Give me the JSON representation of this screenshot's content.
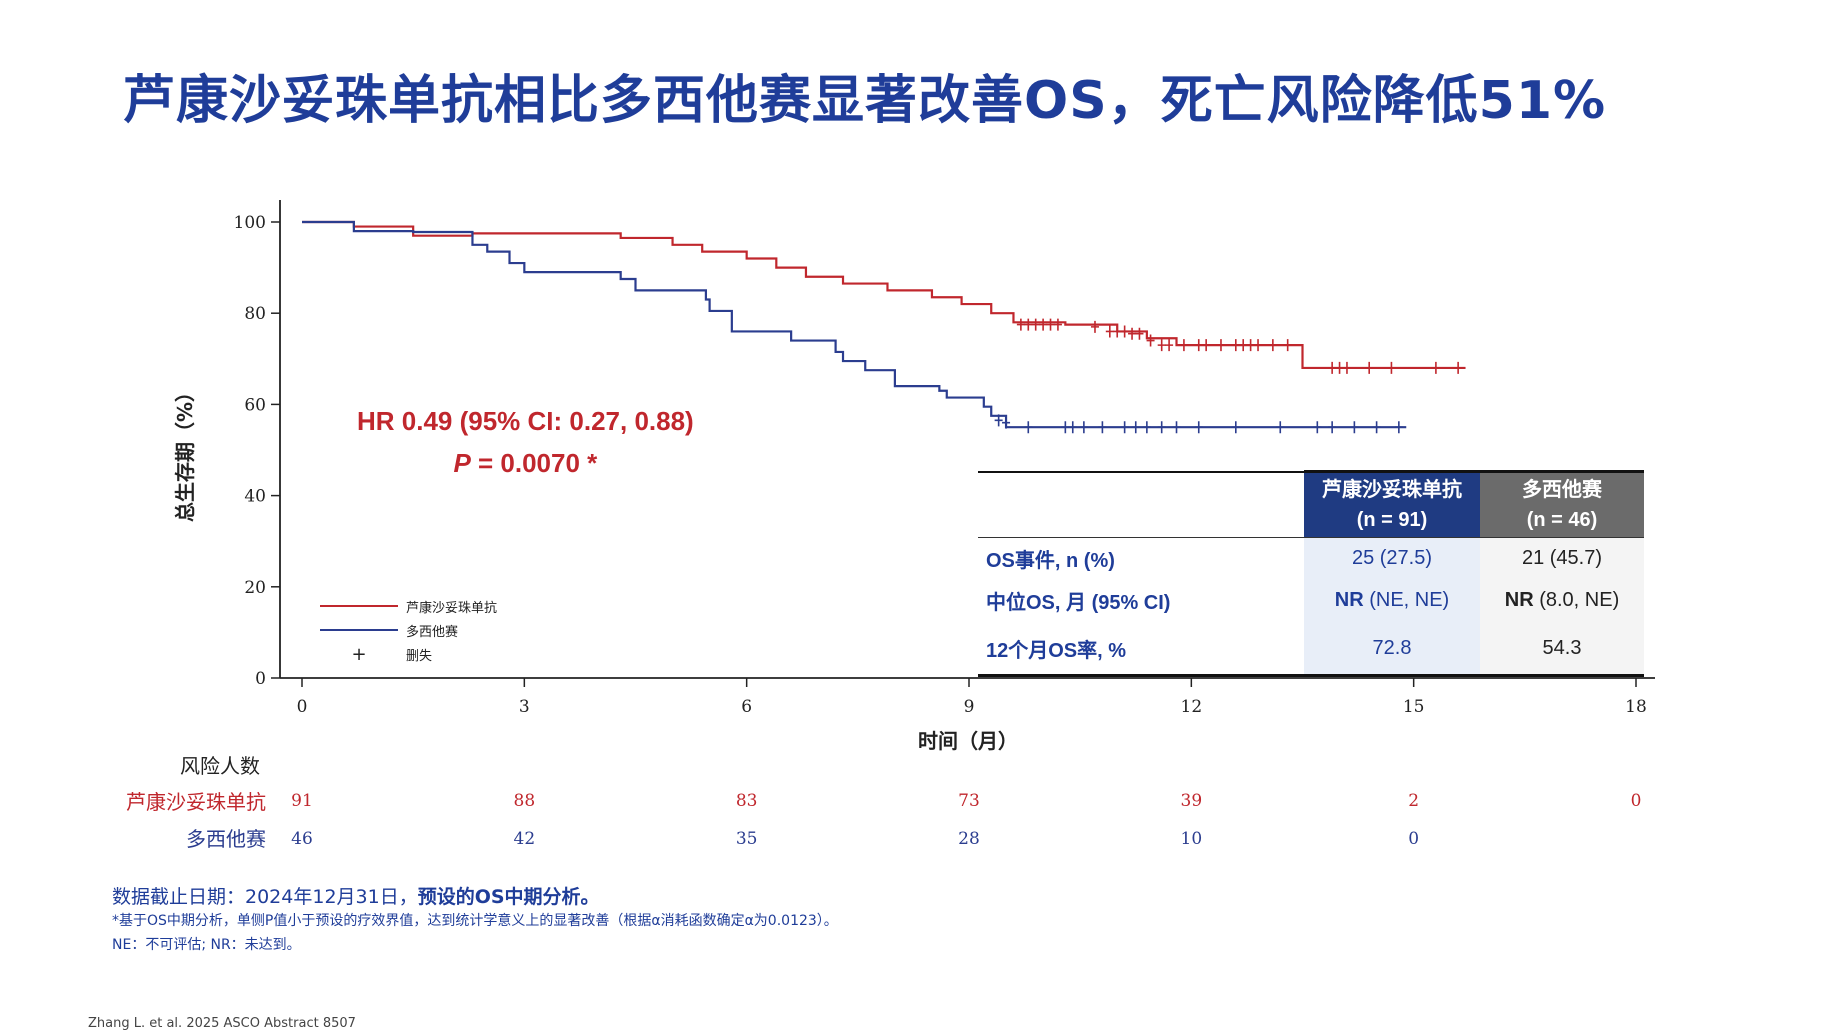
{
  "title": "芦康沙妥珠单抗相比多西他赛显著改善OS，死亡风险降低51%",
  "annotation": {
    "hr_line": "HR 0.49 (95% CI: 0.27, 0.88)",
    "p_italic": "P",
    "p_rest": " = 0.0070 *"
  },
  "legend": {
    "series1": "芦康沙妥珠单抗",
    "series2": "多西他赛",
    "censor_symbol": "+",
    "censor": "删失"
  },
  "table": {
    "header1_line1": "芦康沙妥珠单抗",
    "header1_line2": "(n = 91)",
    "header2_line1": "多西他赛",
    "header2_line2": "(n = 46)",
    "rows": [
      {
        "label": "OS事件, n (%)",
        "v1_bold": "",
        "v1": "25 (27.5)",
        "v2_bold": "",
        "v2": "21 (45.7)"
      },
      {
        "label": "中位OS, 月 (95% CI)",
        "v1_bold": "NR",
        "v1": " (NE, NE)",
        "v2_bold": "NR",
        "v2": " (8.0, NE)"
      },
      {
        "label": "12个月OS率, %",
        "v1_bold": "",
        "v1": "72.8",
        "v2_bold": "",
        "v2": "54.3"
      }
    ]
  },
  "risk_table": {
    "header": "风险人数",
    "series1_label": "芦康沙妥珠单抗",
    "series2_label": "多西他赛",
    "series1_counts": [
      "91",
      "88",
      "83",
      "73",
      "39",
      "2",
      "0"
    ],
    "series2_counts": [
      "46",
      "42",
      "35",
      "28",
      "10",
      "0",
      ""
    ]
  },
  "footnotes": {
    "line1_normal": "数据截止日期：2024年12月31日，",
    "line1_bold": "预设的OS中期分析。",
    "line2": "*基于OS中期分析，单侧P值小于预设的疗效界值，达到统计学意义上的显著改善（根据α消耗函数确定α为0.0123）。",
    "line3": "NE：不可评估; NR：未达到。",
    "citation": "Zhang L. et al. 2025 ASCO Abstract 8507"
  },
  "colors": {
    "series1": "#c0272d",
    "series2": "#2b3d8f",
    "title": "#1f3d99"
  },
  "chart_data": {
    "type": "line",
    "subtype": "kaplan-meier",
    "xlabel": "时间（月）",
    "ylabel": "总生存期（%）",
    "xlim": [
      0,
      18
    ],
    "ylim": [
      0,
      100
    ],
    "xticks": [
      0,
      3,
      6,
      9,
      12,
      15,
      18
    ],
    "yticks": [
      0,
      20,
      40,
      60,
      80,
      100
    ],
    "grid": false,
    "legend_position": "bottom-left",
    "series": [
      {
        "name": "芦康沙妥珠单抗",
        "color": "#c0272d",
        "steps": [
          [
            0,
            100
          ],
          [
            0.7,
            99
          ],
          [
            1.5,
            97
          ],
          [
            2.3,
            97.5
          ],
          [
            4.3,
            96.5
          ],
          [
            5.0,
            95
          ],
          [
            5.4,
            93.5
          ],
          [
            6.0,
            92
          ],
          [
            6.4,
            90
          ],
          [
            6.8,
            88
          ],
          [
            7.3,
            86.5
          ],
          [
            7.9,
            85
          ],
          [
            8.5,
            83.5
          ],
          [
            8.9,
            82
          ],
          [
            9.3,
            80
          ],
          [
            9.6,
            78
          ],
          [
            10.3,
            77.5
          ],
          [
            11.0,
            76
          ],
          [
            11.4,
            74.5
          ],
          [
            11.8,
            73
          ],
          [
            12.4,
            73
          ],
          [
            13.5,
            68
          ],
          [
            15.7,
            68
          ]
        ],
        "censored": [
          [
            9.7,
            77.5
          ],
          [
            9.8,
            77.5
          ],
          [
            9.9,
            77.5
          ],
          [
            10.0,
            77.5
          ],
          [
            10.1,
            77.5
          ],
          [
            10.2,
            77.5
          ],
          [
            10.7,
            77
          ],
          [
            10.9,
            76
          ],
          [
            11.0,
            76
          ],
          [
            11.1,
            76
          ],
          [
            11.2,
            75.5
          ],
          [
            11.3,
            75.5
          ],
          [
            11.45,
            74
          ],
          [
            11.6,
            73
          ],
          [
            11.7,
            73
          ],
          [
            11.9,
            73
          ],
          [
            12.1,
            73
          ],
          [
            12.2,
            73
          ],
          [
            12.4,
            73
          ],
          [
            12.6,
            73
          ],
          [
            12.7,
            73
          ],
          [
            12.8,
            73
          ],
          [
            12.9,
            73
          ],
          [
            13.1,
            73
          ],
          [
            13.3,
            73
          ],
          [
            13.9,
            68
          ],
          [
            14.0,
            68
          ],
          [
            14.1,
            68
          ],
          [
            14.4,
            68
          ],
          [
            14.7,
            68
          ],
          [
            15.3,
            68
          ],
          [
            15.6,
            68
          ]
        ]
      },
      {
        "name": "多西他赛",
        "color": "#2b3d8f",
        "steps": [
          [
            0,
            100
          ],
          [
            0.7,
            98
          ],
          [
            1.5,
            97.8
          ],
          [
            2.3,
            95
          ],
          [
            2.5,
            93.5
          ],
          [
            2.8,
            91
          ],
          [
            3.0,
            91
          ],
          [
            3.0,
            89
          ],
          [
            4.3,
            87.5
          ],
          [
            4.5,
            85
          ],
          [
            5.3,
            85
          ],
          [
            5.45,
            83
          ],
          [
            5.5,
            80.5
          ],
          [
            5.8,
            78.5
          ],
          [
            5.8,
            76
          ],
          [
            6.6,
            74
          ],
          [
            7.2,
            71.5
          ],
          [
            7.3,
            69.5
          ],
          [
            7.6,
            67.5
          ],
          [
            8.0,
            64
          ],
          [
            8.6,
            63
          ],
          [
            8.7,
            61.5
          ],
          [
            9.2,
            59.5
          ],
          [
            9.3,
            57.5
          ],
          [
            9.5,
            55
          ],
          [
            14.9,
            55
          ]
        ],
        "censored": [
          [
            9.4,
            56.5
          ],
          [
            9.5,
            56
          ],
          [
            9.8,
            55
          ],
          [
            10.3,
            55
          ],
          [
            10.4,
            55
          ],
          [
            10.55,
            55
          ],
          [
            10.8,
            55
          ],
          [
            11.1,
            55
          ],
          [
            11.25,
            55
          ],
          [
            11.4,
            55
          ],
          [
            11.6,
            55
          ],
          [
            11.8,
            55
          ],
          [
            12.1,
            55
          ],
          [
            12.6,
            55
          ],
          [
            13.2,
            55
          ],
          [
            13.7,
            55
          ],
          [
            13.9,
            55
          ],
          [
            14.2,
            55
          ],
          [
            14.5,
            55
          ],
          [
            14.8,
            55
          ]
        ]
      }
    ]
  }
}
